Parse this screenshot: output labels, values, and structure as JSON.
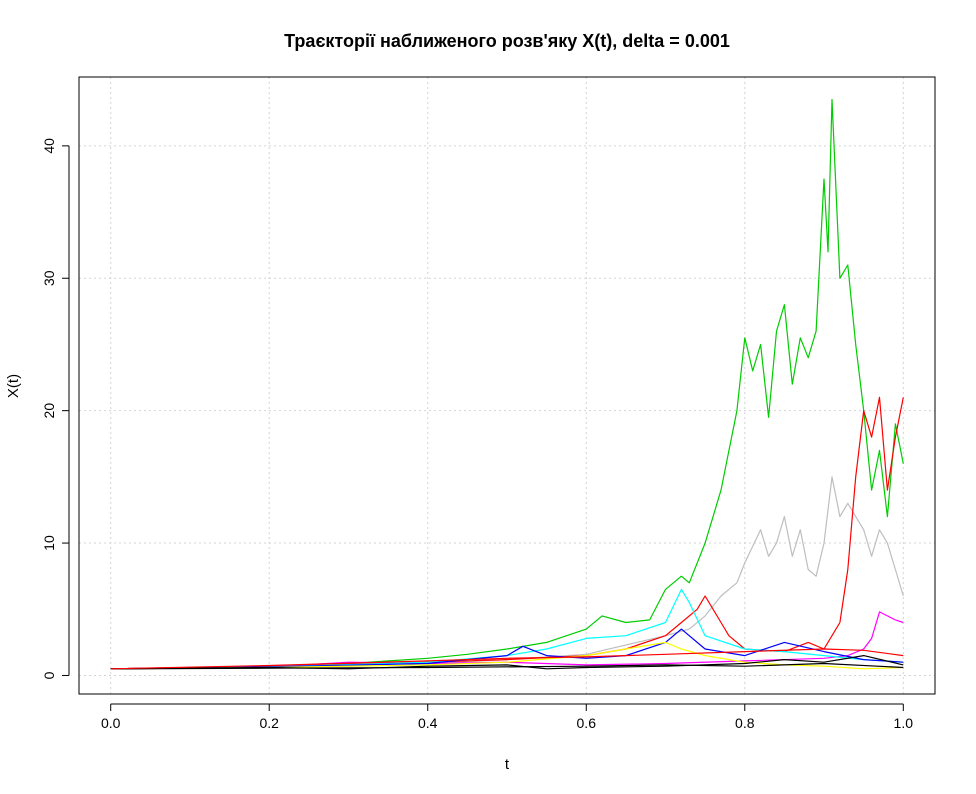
{
  "chart_data": {
    "type": "line",
    "title": "Траєкторії наближеного розв'яку X(t), delta = 0.001",
    "xlabel": "t",
    "ylabel": "X(t)",
    "xlim": [
      -0.04,
      1.04
    ],
    "ylim": [
      -1.4,
      45.2
    ],
    "x_ticks": [
      0.0,
      0.2,
      0.4,
      0.6,
      0.8,
      1.0
    ],
    "x_tick_labels": [
      "0.0",
      "0.2",
      "0.4",
      "0.6",
      "0.8",
      "1.0"
    ],
    "y_ticks": [
      0,
      10,
      20,
      30,
      40
    ],
    "y_tick_labels": [
      "0",
      "10",
      "20",
      "30",
      "40"
    ],
    "grid": true,
    "legend": "none",
    "series": [
      {
        "color": "#00CC00",
        "points": [
          [
            0,
            0.5
          ],
          [
            0.1,
            0.55
          ],
          [
            0.2,
            0.7
          ],
          [
            0.3,
            0.9
          ],
          [
            0.4,
            1.3
          ],
          [
            0.45,
            1.6
          ],
          [
            0.5,
            2.0
          ],
          [
            0.55,
            2.5
          ],
          [
            0.6,
            3.5
          ],
          [
            0.62,
            4.5
          ],
          [
            0.65,
            4.0
          ],
          [
            0.68,
            4.2
          ],
          [
            0.7,
            6.5
          ],
          [
            0.72,
            7.5
          ],
          [
            0.73,
            7.0
          ],
          [
            0.75,
            10.0
          ],
          [
            0.77,
            14.0
          ],
          [
            0.79,
            20.0
          ],
          [
            0.8,
            25.5
          ],
          [
            0.81,
            23.0
          ],
          [
            0.82,
            25.0
          ],
          [
            0.83,
            19.5
          ],
          [
            0.84,
            26.0
          ],
          [
            0.85,
            28.0
          ],
          [
            0.86,
            22.0
          ],
          [
            0.87,
            25.5
          ],
          [
            0.88,
            24.0
          ],
          [
            0.89,
            26.0
          ],
          [
            0.9,
            37.5
          ],
          [
            0.905,
            32.0
          ],
          [
            0.91,
            43.5
          ],
          [
            0.92,
            30.0
          ],
          [
            0.93,
            31.0
          ],
          [
            0.94,
            25.0
          ],
          [
            0.95,
            20.0
          ],
          [
            0.96,
            14.0
          ],
          [
            0.97,
            17.0
          ],
          [
            0.98,
            12.0
          ],
          [
            0.99,
            19.0
          ],
          [
            1.0,
            16.0
          ]
        ]
      },
      {
        "color": "#BEBEBE",
        "points": [
          [
            0,
            0.5
          ],
          [
            0.2,
            0.7
          ],
          [
            0.4,
            0.9
          ],
          [
            0.5,
            1.2
          ],
          [
            0.6,
            1.6
          ],
          [
            0.7,
            3.0
          ],
          [
            0.73,
            3.5
          ],
          [
            0.75,
            4.5
          ],
          [
            0.77,
            6.0
          ],
          [
            0.79,
            7.0
          ],
          [
            0.8,
            8.5
          ],
          [
            0.82,
            11.0
          ],
          [
            0.83,
            9.0
          ],
          [
            0.84,
            10.0
          ],
          [
            0.85,
            12.0
          ],
          [
            0.86,
            9.0
          ],
          [
            0.87,
            11.0
          ],
          [
            0.88,
            8.0
          ],
          [
            0.89,
            7.5
          ],
          [
            0.9,
            10.0
          ],
          [
            0.91,
            15.0
          ],
          [
            0.92,
            12.0
          ],
          [
            0.93,
            13.0
          ],
          [
            0.95,
            11.0
          ],
          [
            0.96,
            9.0
          ],
          [
            0.97,
            11.0
          ],
          [
            0.98,
            10.0
          ],
          [
            0.99,
            8.0
          ],
          [
            1.0,
            6.0
          ]
        ]
      },
      {
        "color": "#FF0000",
        "points": [
          [
            0,
            0.5
          ],
          [
            0.2,
            0.7
          ],
          [
            0.4,
            1.0
          ],
          [
            0.5,
            1.2
          ],
          [
            0.6,
            1.5
          ],
          [
            0.65,
            2.0
          ],
          [
            0.7,
            3.0
          ],
          [
            0.72,
            4.0
          ],
          [
            0.74,
            5.0
          ],
          [
            0.75,
            6.0
          ],
          [
            0.76,
            5.0
          ],
          [
            0.77,
            4.0
          ],
          [
            0.78,
            3.0
          ],
          [
            0.8,
            2.0
          ],
          [
            0.85,
            1.8
          ],
          [
            0.88,
            2.5
          ],
          [
            0.9,
            2.0
          ],
          [
            0.92,
            4.0
          ],
          [
            0.93,
            8.0
          ],
          [
            0.94,
            15.0
          ],
          [
            0.95,
            20.0
          ],
          [
            0.96,
            18.0
          ],
          [
            0.97,
            21.0
          ],
          [
            0.98,
            14.0
          ],
          [
            0.99,
            18.0
          ],
          [
            1.0,
            21.0
          ]
        ]
      },
      {
        "color": "#FF00FF",
        "points": [
          [
            0,
            0.5
          ],
          [
            0.2,
            0.65
          ],
          [
            0.3,
            1.0
          ],
          [
            0.4,
            0.9
          ],
          [
            0.5,
            1.0
          ],
          [
            0.6,
            0.8
          ],
          [
            0.7,
            0.9
          ],
          [
            0.8,
            1.1
          ],
          [
            0.9,
            1.3
          ],
          [
            0.93,
            1.5
          ],
          [
            0.95,
            2.0
          ],
          [
            0.96,
            2.8
          ],
          [
            0.97,
            4.8
          ],
          [
            0.98,
            4.5
          ],
          [
            0.99,
            4.2
          ],
          [
            1.0,
            4.0
          ]
        ]
      },
      {
        "color": "#00FFFF",
        "points": [
          [
            0,
            0.5
          ],
          [
            0.2,
            0.65
          ],
          [
            0.4,
            1.0
          ],
          [
            0.5,
            1.5
          ],
          [
            0.55,
            2.0
          ],
          [
            0.6,
            2.8
          ],
          [
            0.65,
            3.0
          ],
          [
            0.7,
            4.0
          ],
          [
            0.72,
            6.5
          ],
          [
            0.73,
            5.5
          ],
          [
            0.75,
            3.0
          ],
          [
            0.8,
            2.0
          ],
          [
            0.85,
            1.8
          ],
          [
            0.9,
            1.5
          ],
          [
            0.95,
            1.2
          ],
          [
            1.0,
            1.0
          ]
        ]
      },
      {
        "color": "#0000FF",
        "points": [
          [
            0,
            0.5
          ],
          [
            0.2,
            0.65
          ],
          [
            0.4,
            0.9
          ],
          [
            0.5,
            1.5
          ],
          [
            0.52,
            2.2
          ],
          [
            0.55,
            1.5
          ],
          [
            0.6,
            1.3
          ],
          [
            0.65,
            1.5
          ],
          [
            0.7,
            2.5
          ],
          [
            0.72,
            3.5
          ],
          [
            0.75,
            2.0
          ],
          [
            0.8,
            1.5
          ],
          [
            0.85,
            2.5
          ],
          [
            0.9,
            1.8
          ],
          [
            0.95,
            1.2
          ],
          [
            1.0,
            1.0
          ]
        ]
      },
      {
        "color": "#FFFF00",
        "points": [
          [
            0,
            0.5
          ],
          [
            0.2,
            0.6
          ],
          [
            0.4,
            0.8
          ],
          [
            0.5,
            1.0
          ],
          [
            0.6,
            1.5
          ],
          [
            0.65,
            2.0
          ],
          [
            0.7,
            2.5
          ],
          [
            0.72,
            2.0
          ],
          [
            0.75,
            1.5
          ],
          [
            0.8,
            1.0
          ],
          [
            0.85,
            0.8
          ],
          [
            0.9,
            0.7
          ],
          [
            0.95,
            0.5
          ],
          [
            1.0,
            0.6
          ]
        ]
      },
      {
        "color": "#000000",
        "points": [
          [
            0,
            0.5
          ],
          [
            0.2,
            0.6
          ],
          [
            0.3,
            0.5
          ],
          [
            0.4,
            0.7
          ],
          [
            0.5,
            0.8
          ],
          [
            0.55,
            0.5
          ],
          [
            0.6,
            0.6
          ],
          [
            0.7,
            0.7
          ],
          [
            0.8,
            0.9
          ],
          [
            0.85,
            1.2
          ],
          [
            0.9,
            1.0
          ],
          [
            0.95,
            1.5
          ],
          [
            1.0,
            0.8
          ]
        ]
      },
      {
        "color": "#000000",
        "points": [
          [
            0,
            0.5
          ],
          [
            0.2,
            0.55
          ],
          [
            0.4,
            0.6
          ],
          [
            0.6,
            0.7
          ],
          [
            0.7,
            0.8
          ],
          [
            0.8,
            0.7
          ],
          [
            0.9,
            0.9
          ],
          [
            1.0,
            0.6
          ]
        ]
      },
      {
        "color": "#FF0000",
        "points": [
          [
            0,
            0.5
          ],
          [
            0.2,
            0.75
          ],
          [
            0.4,
            1.1
          ],
          [
            0.5,
            1.3
          ],
          [
            0.6,
            1.4
          ],
          [
            0.7,
            1.6
          ],
          [
            0.8,
            1.8
          ],
          [
            0.9,
            2.0
          ],
          [
            0.95,
            1.9
          ],
          [
            1.0,
            1.5
          ]
        ]
      }
    ]
  }
}
